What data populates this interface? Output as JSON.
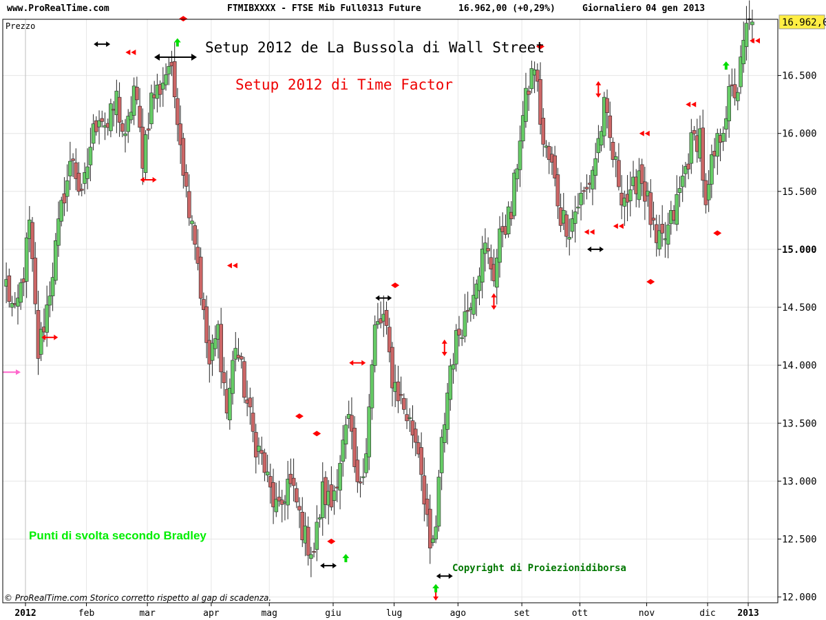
{
  "header": {
    "site": "www.ProRealTime.com",
    "instrument": "FTMIBXXXX - FTSE Mib Full0313 Future",
    "quote": "16.962,00 (+0,29%)",
    "period": "Giornaliero",
    "date": "04 gen 2013"
  },
  "chart_data": {
    "type": "candlestick",
    "ylabel": "Prezzo",
    "ylim": [
      11950,
      16985
    ],
    "grid": true,
    "yticks": [
      "12.000",
      "12.500",
      "13.000",
      "13.500",
      "14.000",
      "14.500",
      "15.000",
      "15.500",
      "16.000",
      "16.500"
    ],
    "bold_tick": "15.000",
    "last_price_label": "16.962,0",
    "last_price": 16962,
    "months": [
      {
        "label": "2012",
        "day": 0,
        "bold": true
      },
      {
        "label": "feb",
        "day": 21
      },
      {
        "label": "mar",
        "day": 42
      },
      {
        "label": "apr",
        "day": 64
      },
      {
        "label": "mag",
        "day": 84
      },
      {
        "label": "giu",
        "day": 106
      },
      {
        "label": "lug",
        "day": 127
      },
      {
        "label": "ago",
        "day": 149
      },
      {
        "label": "set",
        "day": 171
      },
      {
        "label": "ott",
        "day": 191
      },
      {
        "label": "nov",
        "day": 214
      },
      {
        "label": "dic",
        "day": 235
      },
      {
        "label": "2013",
        "day": 254,
        "bold": true
      }
    ],
    "anchors": [
      [
        0,
        14700
      ],
      [
        3,
        14400
      ],
      [
        6,
        14800
      ],
      [
        8,
        15200
      ],
      [
        11,
        14100
      ],
      [
        14,
        14500
      ],
      [
        17,
        15000
      ],
      [
        20,
        15500
      ],
      [
        23,
        15800
      ],
      [
        26,
        15400
      ],
      [
        29,
        15900
      ],
      [
        32,
        16200
      ],
      [
        35,
        16050
      ],
      [
        38,
        16300
      ],
      [
        41,
        15900
      ],
      [
        44,
        16400
      ],
      [
        47,
        15800
      ],
      [
        50,
        16300
      ],
      [
        53,
        16400
      ],
      [
        56,
        16600
      ],
      [
        59,
        16200
      ],
      [
        62,
        15500
      ],
      [
        64,
        15300
      ],
      [
        66,
        14900
      ],
      [
        68,
        14400
      ],
      [
        70,
        14000
      ],
      [
        73,
        14300
      ],
      [
        76,
        13600
      ],
      [
        79,
        14200
      ],
      [
        82,
        13800
      ],
      [
        85,
        13400
      ],
      [
        88,
        13200
      ],
      [
        91,
        12900
      ],
      [
        94,
        12700
      ],
      [
        97,
        13000
      ],
      [
        100,
        12800
      ],
      [
        103,
        12500
      ],
      [
        106,
        12400
      ],
      [
        109,
        12900
      ],
      [
        112,
        12800
      ],
      [
        115,
        13200
      ],
      [
        118,
        13500
      ],
      [
        121,
        12900
      ],
      [
        124,
        13300
      ],
      [
        127,
        14300
      ],
      [
        130,
        14400
      ],
      [
        133,
        13900
      ],
      [
        136,
        13700
      ],
      [
        139,
        13500
      ],
      [
        142,
        13300
      ],
      [
        145,
        12700
      ],
      [
        146,
        12300
      ],
      [
        148,
        12600
      ],
      [
        150,
        13300
      ],
      [
        153,
        14000
      ],
      [
        156,
        14300
      ],
      [
        159,
        14500
      ],
      [
        162,
        14800
      ],
      [
        165,
        15000
      ],
      [
        168,
        14800
      ],
      [
        171,
        15200
      ],
      [
        174,
        15300
      ],
      [
        177,
        16000
      ],
      [
        180,
        16400
      ],
      [
        182,
        16600
      ],
      [
        185,
        15900
      ],
      [
        188,
        15700
      ],
      [
        191,
        15300
      ],
      [
        194,
        15200
      ],
      [
        197,
        15400
      ],
      [
        200,
        15500
      ],
      [
        203,
        15800
      ],
      [
        206,
        16200
      ],
      [
        209,
        15800
      ],
      [
        212,
        15500
      ],
      [
        215,
        15400
      ],
      [
        218,
        15700
      ],
      [
        221,
        15400
      ],
      [
        224,
        15000
      ],
      [
        227,
        15100
      ],
      [
        230,
        15300
      ],
      [
        233,
        15600
      ],
      [
        236,
        15900
      ],
      [
        239,
        16000
      ],
      [
        241,
        15300
      ],
      [
        243,
        15700
      ],
      [
        246,
        16000
      ],
      [
        249,
        16300
      ],
      [
        252,
        16400
      ],
      [
        255,
        16900
      ],
      [
        257,
        16962
      ]
    ],
    "tlen": 258,
    "annotations": {
      "title_bussola": "Setup 2012 de La Bussola di Wall Street",
      "title_timefactor": "Setup 2012 di Time Factor",
      "bradley": "Punti di svolta secondo Bradley",
      "copyright_label": "Copyright di Proiezionidiborsa",
      "footer": "© ProRealTime.com Storico corretto rispetto al gap di scadenza."
    },
    "markers": [
      {
        "type": "double-left",
        "color": "#ff0000",
        "day": 258,
        "price": 16800
      },
      {
        "type": "double-left",
        "color": "#ff0000",
        "day": 43,
        "price": 16700
      },
      {
        "type": "double-left",
        "color": "#ff0000",
        "day": 78,
        "price": 14860
      },
      {
        "type": "double-left",
        "color": "#ff0000",
        "day": 201,
        "price": 15150
      },
      {
        "type": "double-left",
        "color": "#ff0000",
        "day": 211,
        "price": 15200
      },
      {
        "type": "double-left",
        "color": "#ff0000",
        "day": 220,
        "price": 16000
      },
      {
        "type": "double-left",
        "color": "#ff0000",
        "day": 236,
        "price": 16250
      },
      {
        "type": "lr",
        "color": "#000000",
        "day": 33,
        "price": 16770
      },
      {
        "type": "lr",
        "color": "#ff0000",
        "day": 15,
        "price": 14240
      },
      {
        "type": "lr",
        "color": "#ff0000",
        "day": 49,
        "price": 15600
      },
      {
        "type": "lr",
        "color": "#ff0000",
        "day": 121,
        "price": 14020
      },
      {
        "type": "lr",
        "color": "#000000",
        "day": 130,
        "price": 14580
      },
      {
        "type": "lr",
        "color": "#000000",
        "day": 111,
        "price": 12270
      },
      {
        "type": "lr",
        "color": "#000000",
        "day": 151,
        "price": 12180
      },
      {
        "type": "lr",
        "color": "#000000",
        "day": 203,
        "price": 15000
      },
      {
        "type": "ud",
        "color": "#ff0000",
        "day": 148,
        "price": 12040
      },
      {
        "type": "ud",
        "color": "#ff0000",
        "day": 151,
        "price": 14150
      },
      {
        "type": "ud",
        "color": "#ff0000",
        "day": 168,
        "price": 14550
      },
      {
        "type": "ud",
        "color": "#ff0000",
        "day": 204,
        "price": 16380
      },
      {
        "type": "up",
        "color": "#00dd00",
        "day": 59,
        "price": 16780
      },
      {
        "type": "up",
        "color": "#00dd00",
        "day": 117,
        "price": 12330
      },
      {
        "type": "up",
        "color": "#00dd00",
        "day": 148,
        "price": 12070
      },
      {
        "type": "up",
        "color": "#00dd00",
        "day": 248,
        "price": 16580
      },
      {
        "type": "diamond",
        "color": "#ff0000",
        "day": 61,
        "price": 16990
      },
      {
        "type": "diamond",
        "color": "#ff0000",
        "day": 184,
        "price": 16750
      },
      {
        "type": "diamond",
        "color": "#ff0000",
        "day": 101,
        "price": 13560
      },
      {
        "type": "diamond",
        "color": "#ff0000",
        "day": 107,
        "price": 13410
      },
      {
        "type": "diamond",
        "color": "#ff0000",
        "day": 112,
        "price": 12480
      },
      {
        "type": "diamond",
        "color": "#ff0000",
        "day": 134,
        "price": 14690
      },
      {
        "type": "diamond",
        "color": "#ff0000",
        "day": 222,
        "price": 14720
      },
      {
        "type": "diamond",
        "color": "#ff0000",
        "day": 245,
        "price": 15140
      },
      {
        "type": "pink-arrow",
        "color": "#ff66cc",
        "day": 0,
        "price": 13940
      }
    ]
  }
}
